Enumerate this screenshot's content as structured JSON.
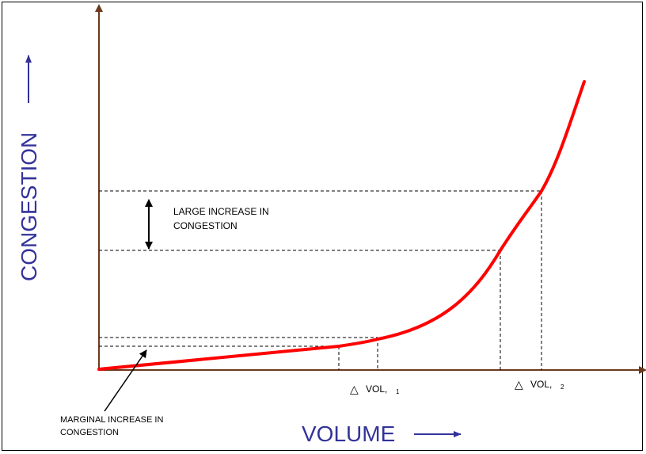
{
  "diagram": {
    "y_axis_title": "CONGESTION",
    "x_axis_title": "VOLUME",
    "annotation_large": [
      "LARGE INCREASE IN",
      "CONGESTION"
    ],
    "annotation_marginal": [
      "MARGINAL INCREASE IN",
      "CONGESTION"
    ],
    "delta_symbol": "△",
    "vol1_label": "VOL,",
    "vol1_sub": "1",
    "vol2_label": "VOL,",
    "vol2_sub": "2"
  },
  "colors": {
    "axis": "#6b3a1f",
    "curve": "#ff0000",
    "axis_title": "#33339a",
    "guide": "#000000"
  }
}
